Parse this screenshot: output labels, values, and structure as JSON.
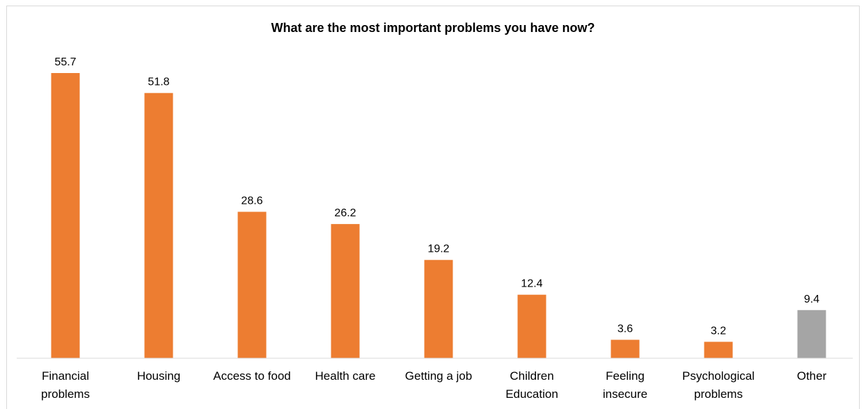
{
  "chart_data": {
    "type": "bar",
    "title": "What are the most important problems you have now?",
    "xlabel": "",
    "ylabel": "",
    "ylim": [
      0,
      55.7
    ],
    "grid": false,
    "legend": "none",
    "categories": [
      [
        "Financial",
        "problems"
      ],
      [
        "Housing"
      ],
      [
        "Access to food"
      ],
      [
        "Health care"
      ],
      [
        "Getting a job"
      ],
      [
        "Children",
        "Education"
      ],
      [
        "Feeling",
        "insecure"
      ],
      [
        "Psychological",
        "problems"
      ],
      [
        "Other"
      ]
    ],
    "values": [
      55.7,
      51.8,
      28.6,
      26.2,
      19.2,
      12.4,
      3.6,
      3.2,
      9.4
    ],
    "value_labels": [
      "55.7",
      "51.8",
      "28.6",
      "26.2",
      "19.2",
      "12.4",
      "3.6",
      "3.2",
      "9.4"
    ],
    "colors": [
      "#ED7D31",
      "#ED7D31",
      "#ED7D31",
      "#ED7D31",
      "#ED7D31",
      "#ED7D31",
      "#ED7D31",
      "#ED7D31",
      "#A5A5A5"
    ],
    "axis_color": "#D9D9D9"
  }
}
